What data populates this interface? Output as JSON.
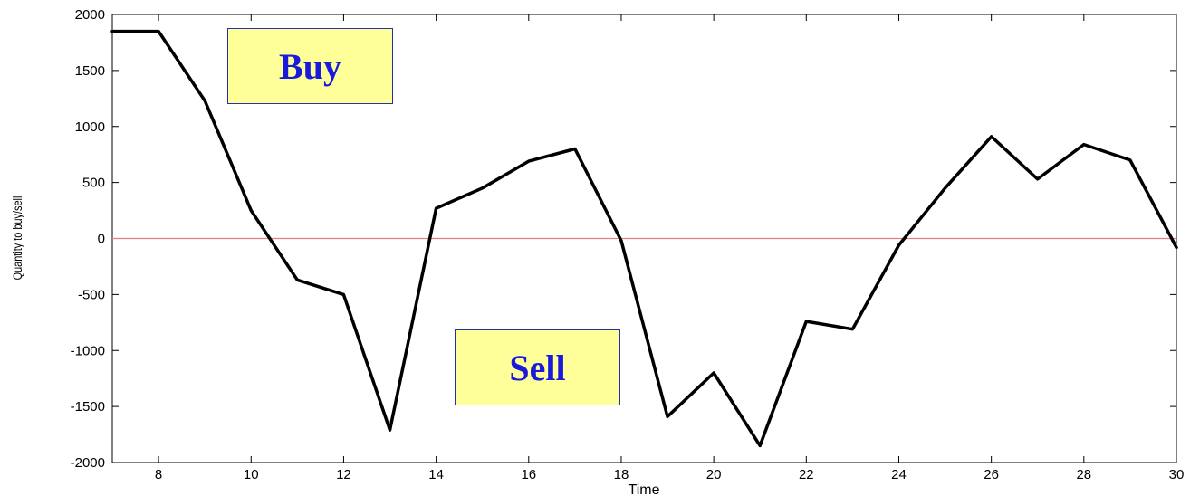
{
  "chart_data": {
    "type": "line",
    "xlabel": "Time",
    "ylabel": "Quantity to buy/sell",
    "xlim": [
      7,
      30
    ],
    "ylim": [
      -2000,
      2000
    ],
    "xticks": [
      8,
      10,
      12,
      14,
      16,
      18,
      20,
      22,
      24,
      26,
      28,
      30
    ],
    "yticks": [
      -2000,
      -1500,
      -1000,
      -500,
      0,
      500,
      1000,
      1500,
      2000
    ],
    "series": [
      {
        "color": "#000000",
        "x": [
          7,
          8,
          9,
          10,
          11,
          12,
          13,
          14,
          15,
          16,
          17,
          18,
          19,
          20,
          21,
          22,
          23,
          24,
          25,
          26,
          27,
          28,
          29,
          30
        ],
        "y": [
          1850,
          1850,
          1230,
          250,
          -370,
          -500,
          -1710,
          270,
          450,
          690,
          800,
          -20,
          -1590,
          -1200,
          -1850,
          -740,
          -810,
          -60,
          450,
          910,
          530,
          840,
          700,
          -80
        ]
      }
    ],
    "reference_line": {
      "y": 0,
      "color": "#e08080"
    },
    "annotations": [
      {
        "text": "Buy",
        "x": 10.5,
        "y": 1520
      },
      {
        "text": "Sell",
        "x": 15.3,
        "y": -1170
      }
    ],
    "grid": false
  },
  "colors": {
    "line": "#000000",
    "zero_line": "#e08080",
    "callout_fill": "#ffff99",
    "callout_text": "#1a1adc",
    "callout_border": "#2233aa"
  }
}
